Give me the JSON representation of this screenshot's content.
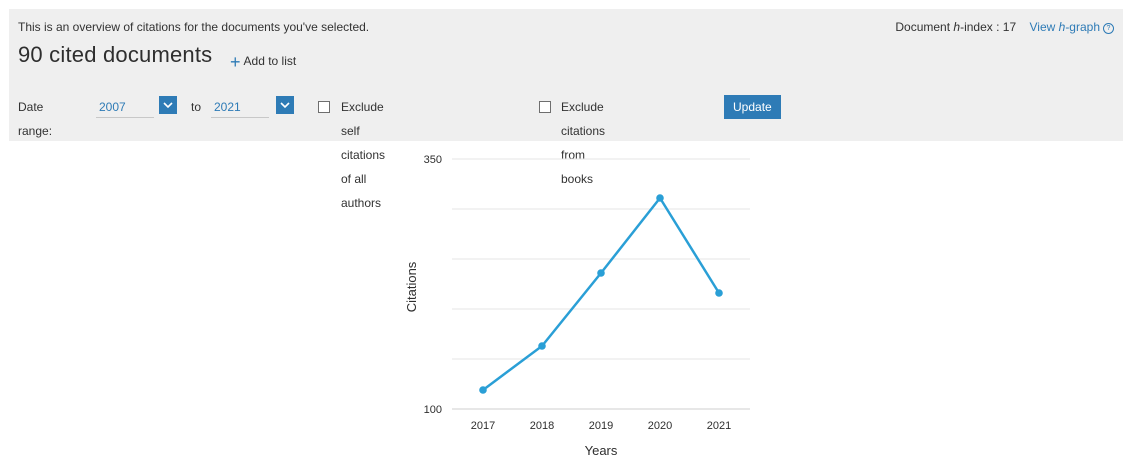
{
  "header": {
    "overview_text": "This is an overview of citations for the documents you've selected.",
    "title": "90 cited documents",
    "add_to_list": "Add to list",
    "hindex_label_prefix": "Document ",
    "hindex_label_italic": "h",
    "hindex_label_suffix": "-index : 17",
    "view_hgraph_prefix": "View ",
    "view_hgraph_italic": "h",
    "view_hgraph_suffix": "-graph"
  },
  "filters": {
    "date_range_label": "Date range:",
    "from_year": "2007",
    "to_label": "to",
    "to_year": "2021",
    "exclude_self_label": "Exclude self citations of all authors",
    "exclude_books_label": "Exclude citations from books",
    "update_label": "Update"
  },
  "icons": {
    "dropdown": "chevron-down-icon",
    "help": "help-icon",
    "add": "plus-icon"
  },
  "colors": {
    "accent": "#2e7bb6",
    "line": "#2a9fd6",
    "panel": "#efefef"
  },
  "chart_data": {
    "type": "line",
    "x": [
      "2017",
      "2018",
      "2019",
      "2020",
      "2021"
    ],
    "series": [
      {
        "values": [
          119,
          163,
          236,
          311,
          216
        ]
      }
    ],
    "xlabel": "Years",
    "ylabel": "Citations",
    "ylim": [
      100,
      350
    ],
    "y_tick_labels": [
      "100",
      "350"
    ],
    "grid": true
  }
}
